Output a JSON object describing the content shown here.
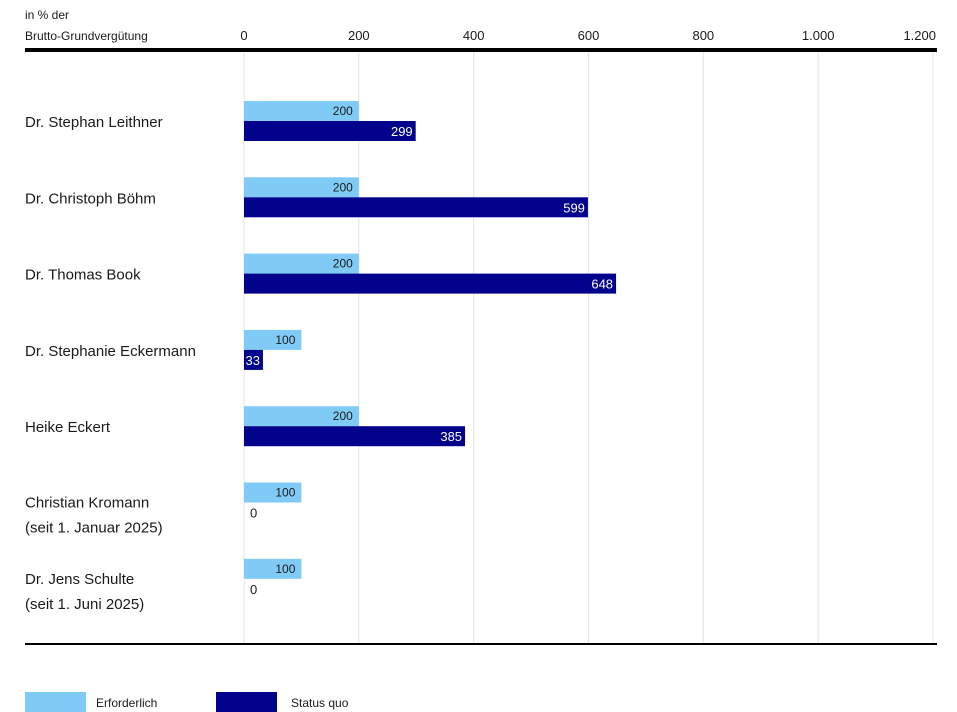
{
  "chart_data": {
    "type": "bar",
    "orientation": "horizontal",
    "axis_label_lines": [
      "in % der",
      "Brutto-Grundvergütung"
    ],
    "xlim": [
      0,
      1200
    ],
    "ticks": [
      0,
      200,
      400,
      600,
      800,
      1000,
      1200
    ],
    "tick_labels": [
      "0",
      "200",
      "400",
      "600",
      "800",
      "1.000",
      "1.200"
    ],
    "grid": true,
    "legend_position": "bottom-left",
    "categories": [
      {
        "name": "Dr. Stephan Leithner",
        "sub": ""
      },
      {
        "name": "Dr. Christoph Böhm",
        "sub": ""
      },
      {
        "name": "Dr. Thomas Book",
        "sub": ""
      },
      {
        "name": "Dr. Stephanie Eckermann",
        "sub": ""
      },
      {
        "name": "Heike Eckert",
        "sub": ""
      },
      {
        "name": "Christian Kromann",
        "sub": "(seit 1. Januar 2025)"
      },
      {
        "name": "Dr. Jens Schulte",
        "sub": "(seit 1. Juni 2025)"
      }
    ],
    "series": [
      {
        "name": "Erforderlich",
        "color": "#7fcbf6",
        "values": [
          200,
          200,
          200,
          100,
          200,
          100,
          100
        ]
      },
      {
        "name": "Status quo",
        "color": "#02028c",
        "values": [
          299,
          599,
          648,
          33,
          385,
          0,
          0
        ]
      }
    ]
  }
}
